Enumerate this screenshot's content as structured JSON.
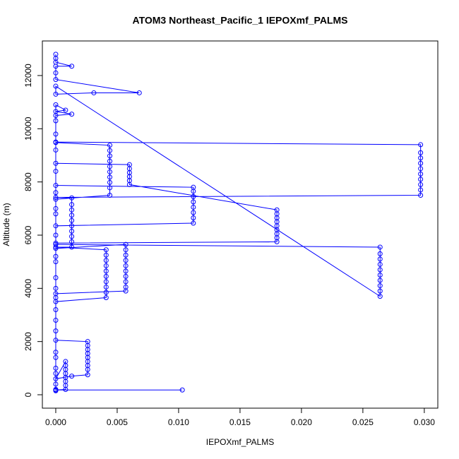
{
  "chart_data": {
    "type": "scatter",
    "connect": true,
    "title": "ATOM3 Northeast_Pacific_1 IEPOXmf_PALMS",
    "x_label": "IEPOXmf_PALMS",
    "y_label": "Altitude (m)",
    "color": "#0000ff",
    "xlim": [
      -0.00109,
      0.0311
    ],
    "ylim": [
      -504,
      13300
    ],
    "xticks": [
      {
        "value": 0,
        "label": "0.000"
      },
      {
        "value": 0.005,
        "label": "0.005"
      },
      {
        "value": 0.01,
        "label": "0.010"
      },
      {
        "value": 0.015,
        "label": "0.015"
      },
      {
        "value": 0.02,
        "label": "0.020"
      },
      {
        "value": 0.025,
        "label": "0.025"
      },
      {
        "value": 0.03,
        "label": "0.030"
      }
    ],
    "yticks": [
      0,
      2000,
      4000,
      6000,
      8000,
      10000,
      12000
    ],
    "x": [
      0,
      0,
      0,
      0.0013,
      0,
      0,
      0,
      0.0068,
      0.0031,
      0,
      0,
      0.0264,
      0.0264,
      0.0264,
      0.0264,
      0.0264,
      0.0264,
      0.0264,
      0.0264,
      0.0264,
      0.0264,
      0,
      0,
      0.0057,
      0.0057,
      0.0057,
      0.0057,
      0.0057,
      0.0057,
      0.0057,
      0.0057,
      0.0057,
      0.0057,
      0,
      0,
      0,
      0.0041,
      0.0041,
      0.0041,
      0.0041,
      0.0041,
      0.0041,
      0.0041,
      0.0041,
      0.0041,
      0.0041,
      0,
      0.0013,
      0.0013,
      0.0013,
      0.0013,
      0.0013,
      0.0013,
      0.0013,
      0.0013,
      0.0013,
      0.0013,
      0,
      0.0297,
      0.0297,
      0.0297,
      0.0297,
      0.0297,
      0.0297,
      0.0297,
      0.0297,
      0.0297,
      0.0297,
      0,
      0,
      0.0044,
      0.0044,
      0.0044,
      0.0044,
      0.0044,
      0.0044,
      0.0044,
      0.0044,
      0.0044,
      0.0044,
      0,
      0,
      0,
      0.0112,
      0.0112,
      0.0112,
      0.0112,
      0.0112,
      0.0112,
      0.0112,
      0.0112,
      0,
      0,
      0.006,
      0.006,
      0.006,
      0.006,
      0.006,
      0.006,
      0.018,
      0.018,
      0.018,
      0.018,
      0.018,
      0.018,
      0.018,
      0.018,
      0.018,
      0,
      0,
      0,
      0,
      0.0026,
      0.0026,
      0.0026,
      0.0026,
      0.0026,
      0.0026,
      0.0026,
      0.0026,
      0.0026,
      0.0013,
      0,
      0.0008,
      0.0008,
      0.0008,
      0.0008,
      0.0008,
      0.0008,
      0.0008,
      0.0008,
      0,
      0.0103,
      0,
      0,
      0,
      0.0008,
      0,
      0.0013,
      0,
      0,
      0,
      0,
      0,
      0,
      0,
      0,
      0,
      0,
      0,
      0,
      0,
      0,
      0,
      0,
      0,
      0,
      0
    ],
    "values": [
      12800,
      12650,
      12500,
      12350,
      12350,
      12100,
      11850,
      11350,
      11350,
      11300,
      11600,
      3700,
      3900,
      4100,
      4300,
      4500,
      4700,
      4900,
      5100,
      5300,
      5550,
      5650,
      5500,
      5650,
      5450,
      5250,
      5050,
      4850,
      4650,
      4450,
      4250,
      4050,
      3900,
      3800,
      3650,
      3500,
      3650,
      3850,
      4050,
      4250,
      4450,
      4650,
      4850,
      5050,
      5250,
      5450,
      5550,
      5550,
      5750,
      5950,
      6150,
      6350,
      6550,
      6750,
      6950,
      7150,
      7400,
      7420,
      7500,
      7700,
      7900,
      8100,
      8300,
      8500,
      8700,
      8900,
      9100,
      9400,
      9500,
      9480,
      9380,
      9180,
      8980,
      8780,
      8580,
      8380,
      8180,
      7980,
      7780,
      7500,
      7350,
      7000,
      6350,
      6450,
      6650,
      6850,
      7050,
      7250,
      7450,
      7650,
      7800,
      7870,
      8700,
      8650,
      8500,
      8350,
      8200,
      8050,
      7900,
      6950,
      6800,
      6650,
      6500,
      6350,
      6200,
      6050,
      5900,
      5750,
      5700,
      5000,
      4000,
      2050,
      2000,
      1850,
      1700,
      1550,
      1400,
      1250,
      1100,
      950,
      750,
      700,
      600,
      1250,
      1100,
      950,
      800,
      650,
      500,
      350,
      200,
      180,
      180,
      180,
      150,
      10900,
      10700,
      10650,
      10550,
      10500,
      10300,
      9800,
      9200,
      8400,
      7600,
      6800,
      6000,
      5200,
      4400,
      3200,
      2800,
      2400,
      1600,
      1400,
      1000,
      800,
      400,
      200
    ]
  }
}
